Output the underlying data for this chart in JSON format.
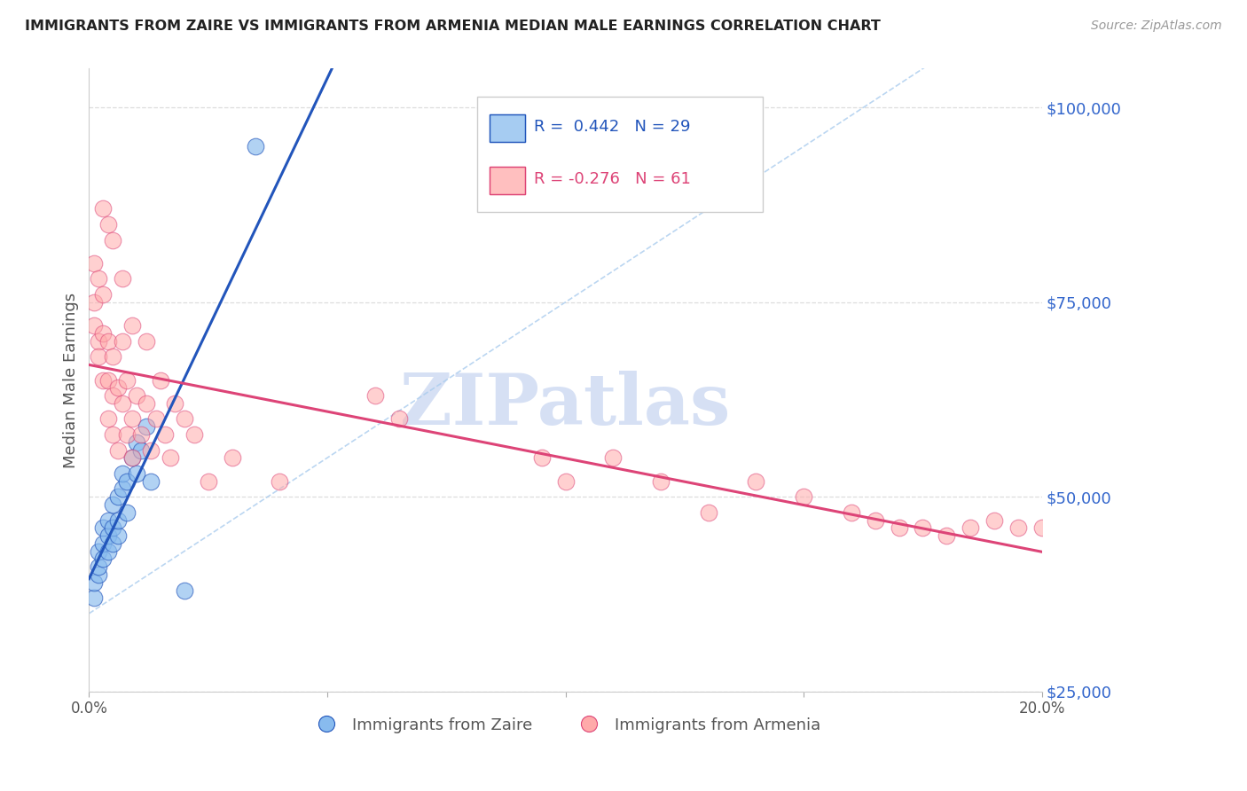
{
  "title": "IMMIGRANTS FROM ZAIRE VS IMMIGRANTS FROM ARMENIA MEDIAN MALE EARNINGS CORRELATION CHART",
  "source": "Source: ZipAtlas.com",
  "ylabel": "Median Male Earnings",
  "x_min": 0.0,
  "x_max": 0.2,
  "y_min": 30000,
  "y_max": 105000,
  "yticks": [
    25000,
    50000,
    75000,
    100000
  ],
  "color_zaire": "#88bbee",
  "color_armenia": "#ffaaaa",
  "color_trendline_zaire": "#2255bb",
  "color_trendline_armenia": "#dd4477",
  "color_refline": "#aaccee",
  "color_ytick_labels": "#3366cc",
  "color_title": "#222222",
  "watermark": "ZIPatlas",
  "watermark_color": "#bbccee",
  "background_color": "#ffffff",
  "grid_color": "#dddddd",
  "legend_label_zaire": "Immigrants from Zaire",
  "legend_label_armenia": "Immigrants from Armenia",
  "zaire_x": [
    0.001,
    0.001,
    0.002,
    0.002,
    0.002,
    0.003,
    0.003,
    0.003,
    0.004,
    0.004,
    0.004,
    0.005,
    0.005,
    0.005,
    0.006,
    0.006,
    0.006,
    0.007,
    0.007,
    0.008,
    0.008,
    0.009,
    0.01,
    0.01,
    0.011,
    0.012,
    0.013,
    0.02,
    0.035
  ],
  "zaire_y": [
    37000,
    39000,
    40000,
    41000,
    43000,
    42000,
    44000,
    46000,
    43000,
    45000,
    47000,
    44000,
    46000,
    49000,
    45000,
    47000,
    50000,
    51000,
    53000,
    48000,
    52000,
    55000,
    57000,
    53000,
    56000,
    59000,
    52000,
    38000,
    95000
  ],
  "armenia_x": [
    0.001,
    0.001,
    0.001,
    0.002,
    0.002,
    0.002,
    0.003,
    0.003,
    0.003,
    0.004,
    0.004,
    0.004,
    0.005,
    0.005,
    0.005,
    0.006,
    0.006,
    0.007,
    0.007,
    0.008,
    0.008,
    0.009,
    0.009,
    0.01,
    0.011,
    0.012,
    0.013,
    0.014,
    0.015,
    0.016,
    0.017,
    0.018,
    0.02,
    0.022,
    0.025,
    0.03,
    0.06,
    0.065,
    0.095,
    0.1,
    0.11,
    0.12,
    0.13,
    0.14,
    0.15,
    0.16,
    0.165,
    0.17,
    0.175,
    0.18,
    0.185,
    0.19,
    0.195,
    0.2,
    0.003,
    0.004,
    0.005,
    0.007,
    0.009,
    0.012,
    0.04
  ],
  "armenia_y": [
    75000,
    72000,
    80000,
    78000,
    70000,
    68000,
    76000,
    65000,
    71000,
    70000,
    65000,
    60000,
    63000,
    68000,
    58000,
    64000,
    56000,
    62000,
    70000,
    65000,
    58000,
    60000,
    55000,
    63000,
    58000,
    62000,
    56000,
    60000,
    65000,
    58000,
    55000,
    62000,
    60000,
    58000,
    52000,
    55000,
    63000,
    60000,
    55000,
    52000,
    55000,
    52000,
    48000,
    52000,
    50000,
    48000,
    47000,
    46000,
    46000,
    45000,
    46000,
    47000,
    46000,
    46000,
    87000,
    85000,
    83000,
    78000,
    72000,
    70000,
    52000
  ]
}
